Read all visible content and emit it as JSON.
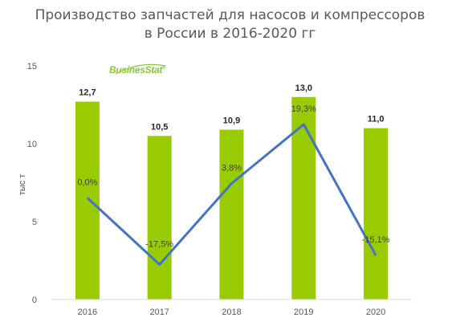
{
  "title_line1": "Производство запчастей для насосов и компрессоров",
  "title_line2": "в России в 2016-2020 гг",
  "logo": {
    "text": "BusinesStat",
    "mark": "®",
    "color": "#8cc63f"
  },
  "colors": {
    "bar": "#99cc00",
    "line": "#4472c4",
    "axis": "#d9d9d9"
  },
  "chart_data": {
    "type": "bar",
    "categories": [
      "2016",
      "2017",
      "2018",
      "2019",
      "2020"
    ],
    "ylabel": "тыс т",
    "ylim": [
      0,
      15
    ],
    "yticks": [
      "0",
      "5",
      "10",
      "15"
    ],
    "grid": false,
    "series": [
      {
        "values": [
          12.7,
          10.5,
          10.9,
          13.0,
          11.0
        ],
        "labels": [
          "12,7",
          "10,5",
          "10,9",
          "13,0",
          "11,0"
        ]
      }
    ],
    "overlay_line": {
      "type": "line",
      "values": [
        0.0,
        -17.5,
        3.8,
        19.3,
        -15.1
      ],
      "labels": [
        "0,0%",
        "-17,5%",
        "3,8%",
        "19,3%",
        "-15,1%"
      ],
      "unit": "%",
      "ylim": [
        -25,
        25
      ]
    }
  }
}
